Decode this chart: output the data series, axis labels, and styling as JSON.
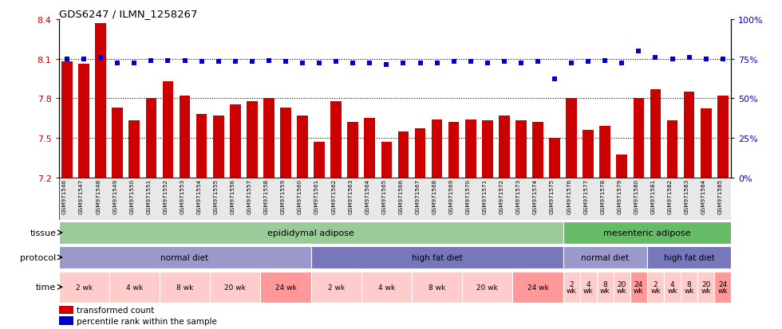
{
  "title": "GDS6247 / ILMN_1258267",
  "samples": [
    "GSM971546",
    "GSM971547",
    "GSM971548",
    "GSM971549",
    "GSM971550",
    "GSM971551",
    "GSM971552",
    "GSM971553",
    "GSM971554",
    "GSM971555",
    "GSM971556",
    "GSM971557",
    "GSM971558",
    "GSM971559",
    "GSM971560",
    "GSM971561",
    "GSM971562",
    "GSM971563",
    "GSM971564",
    "GSM971565",
    "GSM971566",
    "GSM971567",
    "GSM971568",
    "GSM971569",
    "GSM971570",
    "GSM971571",
    "GSM971572",
    "GSM971573",
    "GSM971574",
    "GSM971575",
    "GSM971576",
    "GSM971577",
    "GSM971578",
    "GSM971579",
    "GSM971580",
    "GSM971581",
    "GSM971582",
    "GSM971583",
    "GSM971584",
    "GSM971585"
  ],
  "bar_values": [
    8.08,
    8.06,
    8.37,
    7.73,
    7.63,
    7.8,
    7.93,
    7.82,
    7.68,
    7.67,
    7.75,
    7.78,
    7.8,
    7.73,
    7.67,
    7.47,
    7.78,
    7.62,
    7.65,
    7.47,
    7.55,
    7.57,
    7.64,
    7.62,
    7.64,
    7.63,
    7.67,
    7.63,
    7.62,
    7.5,
    7.8,
    7.56,
    7.59,
    7.37,
    7.8,
    7.87,
    7.63,
    7.85,
    7.72,
    7.82
  ],
  "percentile_values": [
    75,
    75,
    76,
    72,
    72,
    74,
    74,
    74,
    73,
    73,
    73,
    73,
    74,
    73,
    72,
    72,
    73,
    72,
    72,
    71,
    72,
    72,
    72,
    73,
    73,
    72,
    73,
    72,
    73,
    62,
    72,
    73,
    74,
    72,
    80,
    76,
    75,
    76,
    75,
    75
  ],
  "ylim_left": [
    7.2,
    8.4
  ],
  "ylim_right": [
    0,
    100
  ],
  "yticks_left": [
    7.2,
    7.5,
    7.8,
    8.1,
    8.4
  ],
  "yticks_right": [
    0,
    25,
    50,
    75,
    100
  ],
  "bar_color": "#cc0000",
  "dot_color": "#0000cc",
  "tissue_groups": [
    {
      "label": "epididymal adipose",
      "start": 0,
      "end": 29,
      "color": "#99cc99"
    },
    {
      "label": "mesenteric adipose",
      "start": 30,
      "end": 39,
      "color": "#66bb66"
    }
  ],
  "protocol_groups": [
    {
      "label": "normal diet",
      "start": 0,
      "end": 14,
      "color": "#9999cc"
    },
    {
      "label": "high fat diet",
      "start": 15,
      "end": 29,
      "color": "#7777bb"
    },
    {
      "label": "normal diet",
      "start": 30,
      "end": 34,
      "color": "#9999cc"
    },
    {
      "label": "high fat diet",
      "start": 35,
      "end": 39,
      "color": "#7777bb"
    }
  ],
  "time_groups": [
    {
      "label": "2 wk",
      "start": 0,
      "end": 2,
      "color": "#ffcccc"
    },
    {
      "label": "4 wk",
      "start": 3,
      "end": 5,
      "color": "#ffcccc"
    },
    {
      "label": "8 wk",
      "start": 6,
      "end": 8,
      "color": "#ffcccc"
    },
    {
      "label": "20 wk",
      "start": 9,
      "end": 11,
      "color": "#ffcccc"
    },
    {
      "label": "24 wk",
      "start": 12,
      "end": 14,
      "color": "#ff9999"
    },
    {
      "label": "2 wk",
      "start": 15,
      "end": 17,
      "color": "#ffcccc"
    },
    {
      "label": "4 wk",
      "start": 18,
      "end": 20,
      "color": "#ffcccc"
    },
    {
      "label": "8 wk",
      "start": 21,
      "end": 23,
      "color": "#ffcccc"
    },
    {
      "label": "20 wk",
      "start": 24,
      "end": 26,
      "color": "#ffcccc"
    },
    {
      "label": "24 wk",
      "start": 27,
      "end": 29,
      "color": "#ff9999"
    },
    {
      "label": "2\nwk",
      "start": 30,
      "end": 30,
      "color": "#ffcccc"
    },
    {
      "label": "4\nwk",
      "start": 31,
      "end": 31,
      "color": "#ffcccc"
    },
    {
      "label": "8\nwk",
      "start": 32,
      "end": 32,
      "color": "#ffcccc"
    },
    {
      "label": "20\nwk",
      "start": 33,
      "end": 33,
      "color": "#ffcccc"
    },
    {
      "label": "24\nwk",
      "start": 34,
      "end": 34,
      "color": "#ff9999"
    },
    {
      "label": "2\nwk",
      "start": 35,
      "end": 35,
      "color": "#ffcccc"
    },
    {
      "label": "4\nwk",
      "start": 36,
      "end": 36,
      "color": "#ffcccc"
    },
    {
      "label": "8\nwk",
      "start": 37,
      "end": 37,
      "color": "#ffcccc"
    },
    {
      "label": "20\nwk",
      "start": 38,
      "end": 38,
      "color": "#ffcccc"
    },
    {
      "label": "24\nwk",
      "start": 39,
      "end": 39,
      "color": "#ff9999"
    }
  ],
  "legend_bar_label": "transformed count",
  "legend_dot_label": "percentile rank within the sample",
  "row_labels": [
    "tissue",
    "protocol",
    "time"
  ]
}
